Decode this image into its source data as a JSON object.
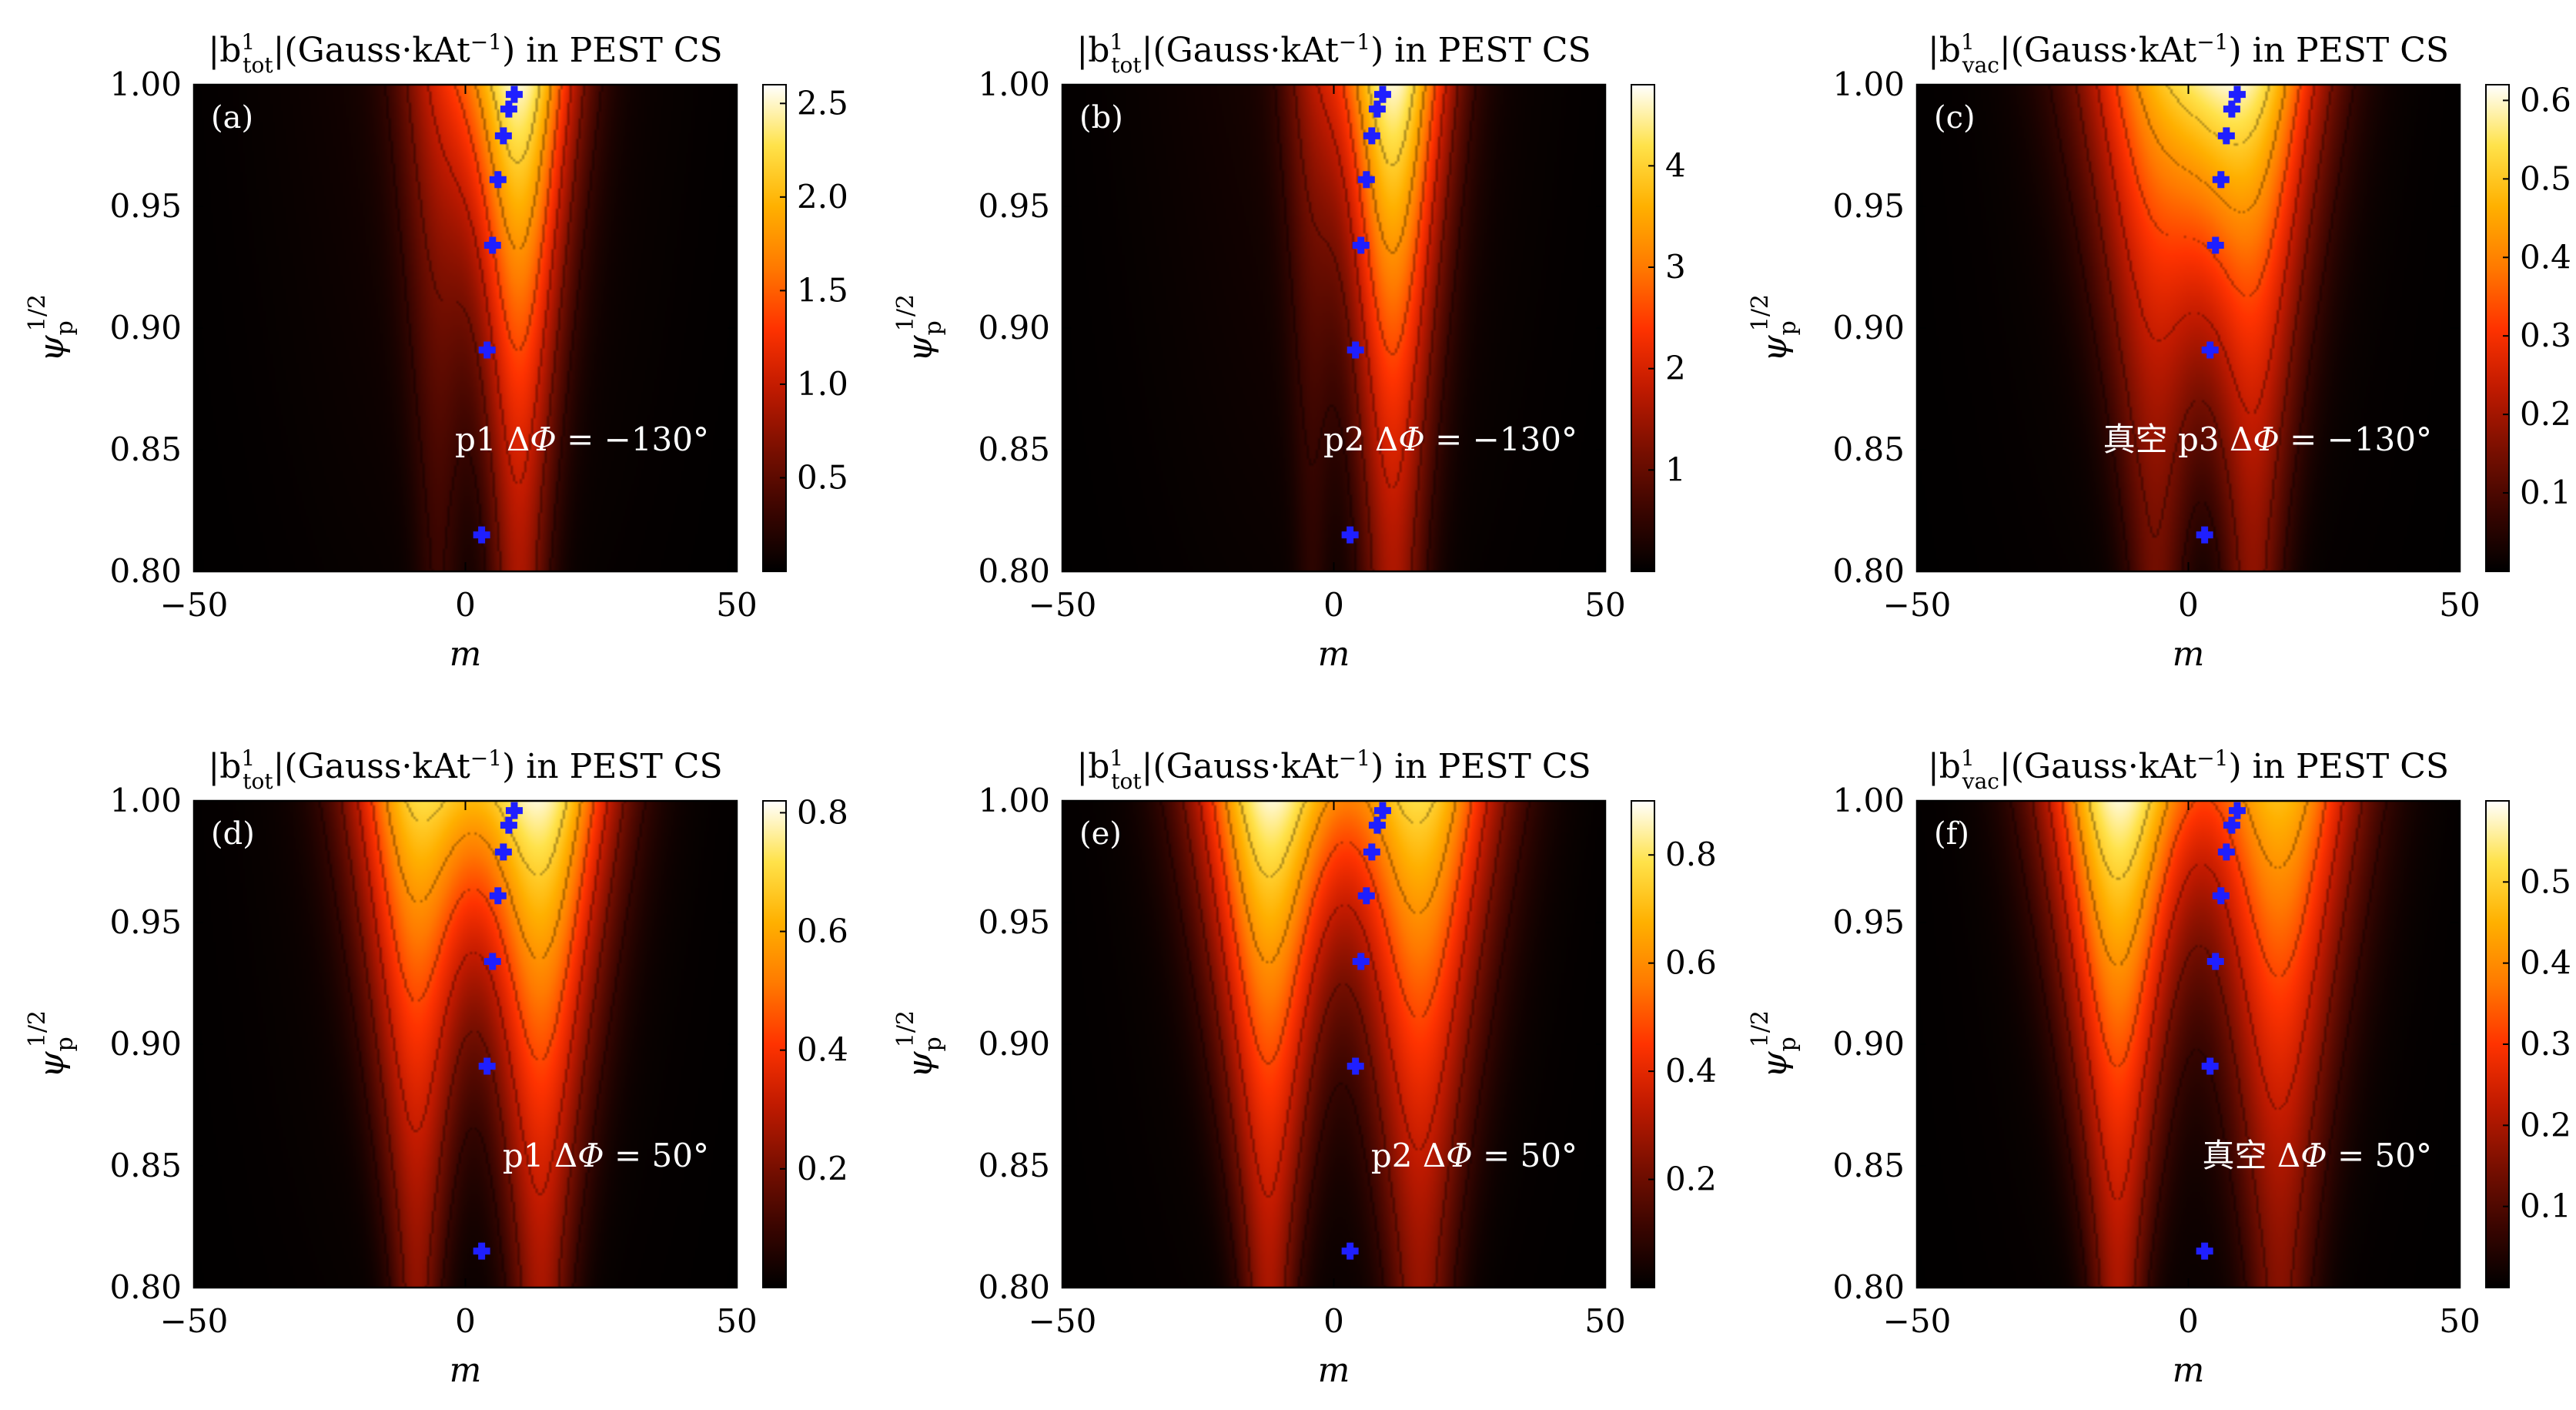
{
  "figure": {
    "colormap": [
      "#000000",
      "#3a0500",
      "#7a0f00",
      "#c01a00",
      "#ff3300",
      "#ff7a00",
      "#ffb000",
      "#ffe24a",
      "#ffffff"
    ],
    "marker_color": "#1f1fff",
    "contour_color": "#000000"
  },
  "chart_data": [
    {
      "type": "heatmap",
      "panel_label": "(a)",
      "title": "|b_tot^1|(Gauss·kAt^-1) in PEST CS",
      "title_main": "|b",
      "title_sup": "1",
      "title_sub": "tot",
      "title_rest": "|(Gauss·kAt",
      "title_exp": "−1",
      "title_tail": ") in PEST CS",
      "xlabel": "m",
      "ylabel": "ψ_p^1/2",
      "xlim": [
        -50,
        50
      ],
      "ylim": [
        0.8,
        1.0
      ],
      "xticks": [
        "−50",
        "0",
        "50"
      ],
      "yticks": [
        "0.80",
        "0.85",
        "0.90",
        "0.95",
        "1.00"
      ],
      "colorbar_ticks": [
        "0.5",
        "1.0",
        "1.5",
        "2.0",
        "2.5"
      ],
      "colorbar_tick_values": [
        0.5,
        1.0,
        1.5,
        2.0,
        2.5
      ],
      "colorbar_range": [
        0,
        2.6
      ],
      "annotation": "p1 ΔΦ = −130°",
      "annotation_parts": [
        "p1 Δ",
        "Φ",
        " = −130°"
      ],
      "resonance_points": [
        {
          "m": 3,
          "psi": 0.815
        },
        {
          "m": 4,
          "psi": 0.891
        },
        {
          "m": 5,
          "psi": 0.934
        },
        {
          "m": 6,
          "psi": 0.961
        },
        {
          "m": 7,
          "psi": 0.979
        },
        {
          "m": 8,
          "psi": 0.99
        },
        {
          "m": 9,
          "psi": 0.996
        }
      ],
      "lobes": [
        {
          "m": -5,
          "peak": 0.32,
          "width": 8,
          "narrow": 0.5
        },
        {
          "m": 10,
          "peak": 1.0,
          "width": 10,
          "narrow": 0.55
        }
      ]
    },
    {
      "type": "heatmap",
      "panel_label": "(b)",
      "title": "|b_tot^1|(Gauss·kAt^-1) in PEST CS",
      "title_main": "|b",
      "title_sup": "1",
      "title_sub": "tot",
      "title_rest": "|(Gauss·kAt",
      "title_exp": "−1",
      "title_tail": ") in PEST CS",
      "xlabel": "m",
      "ylabel": "ψ_p^1/2",
      "xlim": [
        -50,
        50
      ],
      "ylim": [
        0.8,
        1.0
      ],
      "xticks": [
        "−50",
        "0",
        "50"
      ],
      "yticks": [
        "0.80",
        "0.85",
        "0.90",
        "0.95",
        "1.00"
      ],
      "colorbar_ticks": [
        "1",
        "2",
        "3",
        "4"
      ],
      "colorbar_tick_values": [
        1,
        2,
        3,
        4
      ],
      "colorbar_range": [
        0,
        4.8
      ],
      "annotation": "p2 ΔΦ = −130°",
      "annotation_parts": [
        "p2 Δ",
        "Φ",
        " = −130°"
      ],
      "resonance_points": [
        {
          "m": 3,
          "psi": 0.815
        },
        {
          "m": 4,
          "psi": 0.891
        },
        {
          "m": 5,
          "psi": 0.934
        },
        {
          "m": 6,
          "psi": 0.961
        },
        {
          "m": 7,
          "psi": 0.979
        },
        {
          "m": 8,
          "psi": 0.99
        },
        {
          "m": 9,
          "psi": 0.996
        }
      ],
      "lobes": [
        {
          "m": -4,
          "peak": 0.22,
          "width": 6,
          "narrow": 0.5
        },
        {
          "m": 11,
          "peak": 1.0,
          "width": 10,
          "narrow": 0.6
        }
      ]
    },
    {
      "type": "heatmap",
      "panel_label": "(c)",
      "title": "|b_vac^1|(Gauss·kAt^-1) in PEST CS",
      "title_main": "|b",
      "title_sup": "1",
      "title_sub": "vac",
      "title_rest": "|(Gauss·kAt",
      "title_exp": "−1",
      "title_tail": ") in PEST CS",
      "xlabel": "m",
      "ylabel": "ψ_p^1/2",
      "xlim": [
        -50,
        50
      ],
      "ylim": [
        0.8,
        1.0
      ],
      "xticks": [
        "−50",
        "0",
        "50"
      ],
      "yticks": [
        "0.80",
        "0.85",
        "0.90",
        "0.95",
        "1.00"
      ],
      "colorbar_ticks": [
        "0.1",
        "0.2",
        "0.3",
        "0.4",
        "0.5",
        "0.6"
      ],
      "colorbar_tick_values": [
        0.1,
        0.2,
        0.3,
        0.4,
        0.5,
        0.6
      ],
      "colorbar_range": [
        0,
        0.62
      ],
      "annotation": "真空 p3 ΔΦ = −130°",
      "annotation_parts": [
        "真空 p3 Δ",
        "Φ",
        " = −130°"
      ],
      "resonance_points": [
        {
          "m": 3,
          "psi": 0.815
        },
        {
          "m": 4,
          "psi": 0.891
        },
        {
          "m": 5,
          "psi": 0.934
        },
        {
          "m": 6,
          "psi": 0.961
        },
        {
          "m": 7,
          "psi": 0.979
        },
        {
          "m": 8,
          "psi": 0.99
        },
        {
          "m": 9,
          "psi": 0.996
        }
      ],
      "lobes": [
        {
          "m": -6,
          "peak": 0.8,
          "width": 14,
          "narrow": 0.4
        },
        {
          "m": 12,
          "peak": 1.0,
          "width": 13,
          "narrow": 0.45
        }
      ]
    },
    {
      "type": "heatmap",
      "panel_label": "(d)",
      "title": "|b_tot^1|(Gauss·kAt^-1) in PEST CS",
      "title_main": "|b",
      "title_sup": "1",
      "title_sub": "tot",
      "title_rest": "|(Gauss·kAt",
      "title_exp": "−1",
      "title_tail": ") in PEST CS",
      "xlabel": "m",
      "ylabel": "ψ_p^1/2",
      "xlim": [
        -50,
        50
      ],
      "ylim": [
        0.8,
        1.0
      ],
      "xticks": [
        "−50",
        "0",
        "50"
      ],
      "yticks": [
        "0.80",
        "0.85",
        "0.90",
        "0.95",
        "1.00"
      ],
      "colorbar_ticks": [
        "0.2",
        "0.4",
        "0.6",
        "0.8"
      ],
      "colorbar_tick_values": [
        0.2,
        0.4,
        0.6,
        0.8
      ],
      "colorbar_range": [
        0,
        0.82
      ],
      "annotation": "p1 ΔΦ = 50°",
      "annotation_parts": [
        "p1 Δ",
        "Φ",
        " = 50°"
      ],
      "resonance_points": [
        {
          "m": 3,
          "psi": 0.815
        },
        {
          "m": 4,
          "psi": 0.891
        },
        {
          "m": 5,
          "psi": 0.934
        },
        {
          "m": 6,
          "psi": 0.961
        },
        {
          "m": 7,
          "psi": 0.979
        },
        {
          "m": 8,
          "psi": 0.99
        },
        {
          "m": 9,
          "psi": 0.996
        }
      ],
      "lobes": [
        {
          "m": -9,
          "peak": 0.85,
          "width": 12,
          "narrow": 0.4
        },
        {
          "m": 14,
          "peak": 1.0,
          "width": 13,
          "narrow": 0.45
        }
      ]
    },
    {
      "type": "heatmap",
      "panel_label": "(e)",
      "title": "|b_tot^1|(Gauss·kAt^-1) in PEST CS",
      "title_main": "|b",
      "title_sup": "1",
      "title_sub": "tot",
      "title_rest": "|(Gauss·kAt",
      "title_exp": "−1",
      "title_tail": ") in PEST CS",
      "xlabel": "m",
      "ylabel": "ψ_p^1/2",
      "xlim": [
        -50,
        50
      ],
      "ylim": [
        0.8,
        1.0
      ],
      "xticks": [
        "−50",
        "0",
        "50"
      ],
      "yticks": [
        "0.80",
        "0.85",
        "0.90",
        "0.95",
        "1.00"
      ],
      "colorbar_ticks": [
        "0.2",
        "0.4",
        "0.6",
        "0.8"
      ],
      "colorbar_tick_values": [
        0.2,
        0.4,
        0.6,
        0.8
      ],
      "colorbar_range": [
        0,
        0.9
      ],
      "annotation": "p2 ΔΦ = 50°",
      "annotation_parts": [
        "p2 Δ",
        "Φ",
        " = 50°"
      ],
      "resonance_points": [
        {
          "m": 3,
          "psi": 0.815
        },
        {
          "m": 4,
          "psi": 0.891
        },
        {
          "m": 5,
          "psi": 0.934
        },
        {
          "m": 6,
          "psi": 0.961
        },
        {
          "m": 7,
          "psi": 0.979
        },
        {
          "m": 8,
          "psi": 0.99
        },
        {
          "m": 9,
          "psi": 0.996
        }
      ],
      "lobes": [
        {
          "m": -12,
          "peak": 0.95,
          "width": 13,
          "narrow": 0.4
        },
        {
          "m": 16,
          "peak": 0.85,
          "width": 14,
          "narrow": 0.45
        }
      ]
    },
    {
      "type": "heatmap",
      "panel_label": "(f)",
      "title": "|b_vac^1|(Gauss·kAt^-1) in PEST CS",
      "title_main": "|b",
      "title_sup": "1",
      "title_sub": "vac",
      "title_rest": "|(Gauss·kAt",
      "title_exp": "−1",
      "title_tail": ") in PEST CS",
      "xlabel": "m",
      "ylabel": "ψ_p^1/2",
      "xlim": [
        -50,
        50
      ],
      "ylim": [
        0.8,
        1.0
      ],
      "xticks": [
        "−50",
        "0",
        "50"
      ],
      "yticks": [
        "0.80",
        "0.85",
        "0.90",
        "0.95",
        "1.00"
      ],
      "colorbar_ticks": [
        "0.1",
        "0.2",
        "0.3",
        "0.4",
        "0.5"
      ],
      "colorbar_tick_values": [
        0.1,
        0.2,
        0.3,
        0.4,
        0.5
      ],
      "colorbar_range": [
        0,
        0.6
      ],
      "annotation": "真空 ΔΦ = 50°",
      "annotation_parts": [
        "真空 Δ",
        "Φ",
        " = 50°"
      ],
      "resonance_points": [
        {
          "m": 3,
          "psi": 0.815
        },
        {
          "m": 4,
          "psi": 0.891
        },
        {
          "m": 5,
          "psi": 0.934
        },
        {
          "m": 6,
          "psi": 0.961
        },
        {
          "m": 7,
          "psi": 0.979
        },
        {
          "m": 8,
          "psi": 0.99
        },
        {
          "m": 9,
          "psi": 0.996
        }
      ],
      "lobes": [
        {
          "m": -13,
          "peak": 1.0,
          "width": 13,
          "narrow": 0.4
        },
        {
          "m": 17,
          "peak": 0.8,
          "width": 14,
          "narrow": 0.45
        }
      ]
    }
  ]
}
